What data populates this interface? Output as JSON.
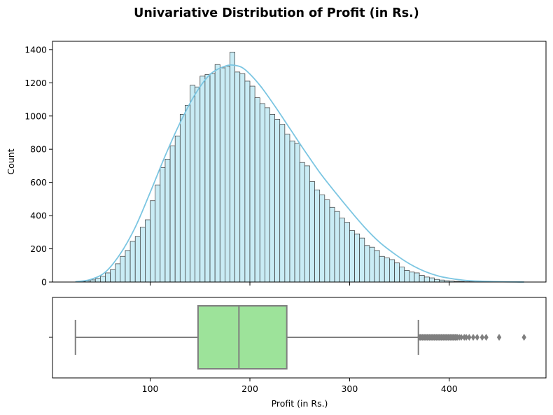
{
  "title": "Univariative Distribution of Profit (in Rs.)",
  "colors": {
    "hist_fill": "#c9ecf5",
    "hist_edge": "#333333",
    "kde_line": "#7cc6e2",
    "box_fill": "#9de39a",
    "box_line": "#7f7f7f"
  },
  "chart_data": [
    {
      "type": "bar",
      "subtype": "histogram",
      "xlabel": "",
      "ylabel": "Count",
      "xlim": [
        2,
        497
      ],
      "ylim": [
        0,
        1450
      ],
      "yticks": [
        0,
        200,
        400,
        600,
        800,
        1000,
        1200,
        1400
      ],
      "xticks": [
        100,
        200,
        300,
        400
      ],
      "bin_start": 25,
      "bin_width": 5,
      "counts": [
        1,
        3,
        7,
        13,
        22,
        35,
        55,
        75,
        110,
        155,
        190,
        245,
        275,
        330,
        375,
        490,
        585,
        690,
        740,
        820,
        880,
        1010,
        1065,
        1185,
        1175,
        1240,
        1250,
        1255,
        1310,
        1290,
        1300,
        1385,
        1265,
        1255,
        1210,
        1180,
        1110,
        1075,
        1050,
        1010,
        980,
        950,
        890,
        850,
        835,
        720,
        700,
        605,
        555,
        525,
        495,
        450,
        425,
        385,
        360,
        310,
        290,
        265,
        220,
        210,
        190,
        155,
        145,
        135,
        115,
        90,
        70,
        60,
        55,
        40,
        30,
        25,
        16,
        12,
        8,
        6,
        4,
        3,
        2,
        2,
        1,
        1,
        1,
        1,
        1,
        1,
        1,
        1,
        1,
        1
      ],
      "kde": {
        "x": [
          25,
          40,
          55,
          70,
          85,
          100,
          115,
          130,
          145,
          160,
          175,
          185,
          195,
          210,
          225,
          240,
          255,
          270,
          285,
          300,
          315,
          330,
          345,
          360,
          375,
          390,
          405,
          420,
          450,
          475
        ],
        "y": [
          2,
          15,
          60,
          170,
          330,
          540,
          760,
          960,
          1130,
          1250,
          1300,
          1305,
          1280,
          1185,
          1060,
          925,
          790,
          660,
          545,
          435,
          330,
          240,
          170,
          110,
          65,
          35,
          18,
          8,
          2,
          0
        ]
      }
    },
    {
      "type": "box",
      "xlabel": "Profit (in Rs.)",
      "xlim": [
        2,
        497
      ],
      "xticks": [
        100,
        200,
        300,
        400
      ],
      "ytick_labels": [
        ""
      ],
      "whisker_low": 25,
      "q1": 148,
      "median": 189,
      "q3": 237,
      "whisker_high": 369,
      "outliers": [
        370,
        371,
        372,
        373,
        374,
        375,
        376,
        377,
        378,
        379,
        380,
        381,
        382,
        383,
        384,
        385,
        386,
        387,
        388,
        389,
        390,
        391,
        392,
        393,
        394,
        395,
        396,
        397,
        398,
        399,
        400,
        401,
        402,
        403,
        404,
        405,
        406,
        407,
        408,
        410,
        412,
        415,
        417,
        420,
        424,
        428,
        433,
        437,
        450,
        475
      ]
    }
  ]
}
